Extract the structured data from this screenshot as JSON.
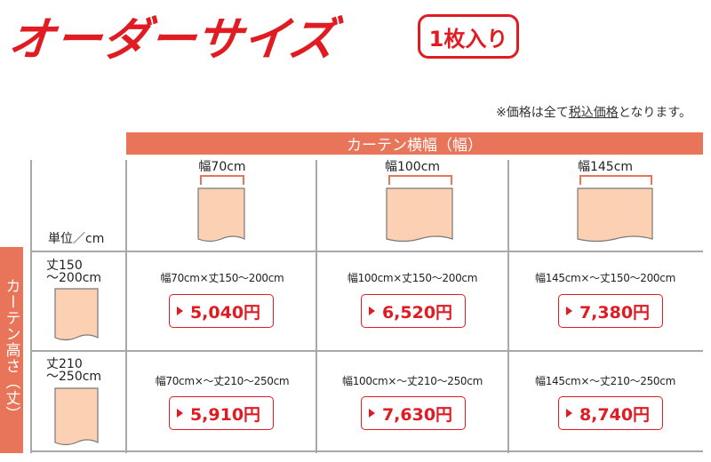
{
  "header": {
    "title": "オーダーサイズ",
    "badge": "1枚入り",
    "note_prefix": "※価格は全て",
    "note_link": "税込価格",
    "note_suffix": "となります。"
  },
  "table": {
    "width_header": "カーテン横幅（幅）",
    "height_header": "カーテン高さ（丈）",
    "unit_label": "単位／cm",
    "columns": [
      {
        "label": "幅70cm"
      },
      {
        "label": "幅100cm"
      },
      {
        "label": "幅145cm"
      }
    ],
    "rows": [
      {
        "label_line1": "丈150",
        "label_line2": "～200cm",
        "cells": [
          {
            "desc": "幅70cm×丈150～200cm",
            "price": "5,040円"
          },
          {
            "desc": "幅100cm×丈150～200cm",
            "price": "6,520円"
          },
          {
            "desc": "幅145cm×～丈150～200cm",
            "price": "7,380円"
          }
        ]
      },
      {
        "label_line1": "丈210",
        "label_line2": "～250cm",
        "cells": [
          {
            "desc": "幅70cm×～丈210～250cm",
            "price": "5,910円"
          },
          {
            "desc": "幅100cm×～丈210～250cm",
            "price": "7,630円"
          },
          {
            "desc": "幅145cm×～丈210～250cm",
            "price": "8,740円"
          }
        ]
      }
    ]
  },
  "colors": {
    "accent_red": "#e01b22",
    "header_salmon": "#e8745a",
    "curtain_fill": "#fcd1b3",
    "grid_line": "#a8a8a8"
  }
}
